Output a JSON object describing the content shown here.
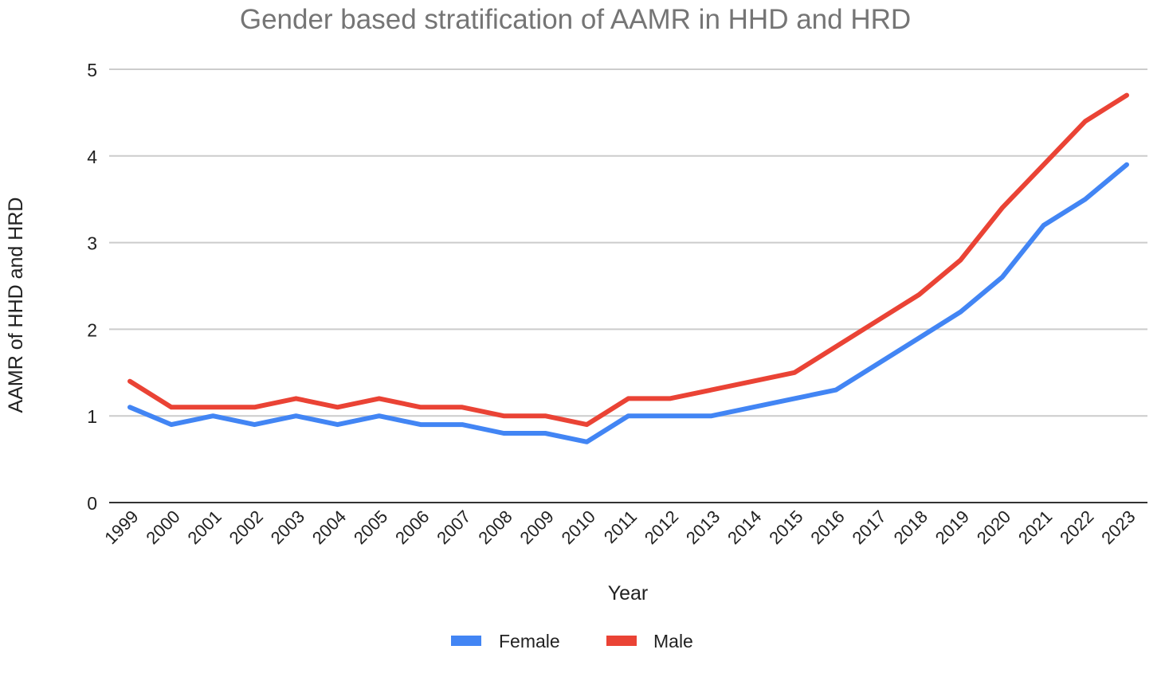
{
  "chart_data": {
    "type": "line",
    "title": "Gender based stratification of AAMR in HHD and HRD",
    "xlabel": "Year",
    "ylabel": "AAMR of HHD and HRD",
    "ylim": [
      0,
      5
    ],
    "yticks": [
      "0",
      "1",
      "2",
      "3",
      "4",
      "5"
    ],
    "grid": true,
    "legend_position": "bottom",
    "categories": [
      "1999",
      "2000",
      "2001",
      "2002",
      "2003",
      "2004",
      "2005",
      "2006",
      "2007",
      "2008",
      "2009",
      "2010",
      "2011",
      "2012",
      "2013",
      "2014",
      "2015",
      "2016",
      "2017",
      "2018",
      "2019",
      "2020",
      "2021",
      "2022",
      "2023"
    ],
    "series": [
      {
        "name": "Female",
        "color": "#4285f4",
        "values": [
          1.1,
          0.9,
          1.0,
          0.9,
          1.0,
          0.9,
          1.0,
          0.9,
          0.9,
          0.8,
          0.8,
          0.7,
          1.0,
          1.0,
          1.0,
          1.1,
          1.2,
          1.3,
          1.6,
          1.9,
          2.2,
          2.6,
          3.2,
          3.5,
          3.9
        ]
      },
      {
        "name": "Male",
        "color": "#ea4335",
        "values": [
          1.4,
          1.1,
          1.1,
          1.1,
          1.2,
          1.1,
          1.2,
          1.1,
          1.1,
          1.0,
          1.0,
          0.9,
          1.2,
          1.2,
          1.3,
          1.4,
          1.5,
          1.8,
          2.1,
          2.4,
          2.8,
          3.4,
          3.9,
          4.4,
          4.7
        ]
      }
    ]
  }
}
